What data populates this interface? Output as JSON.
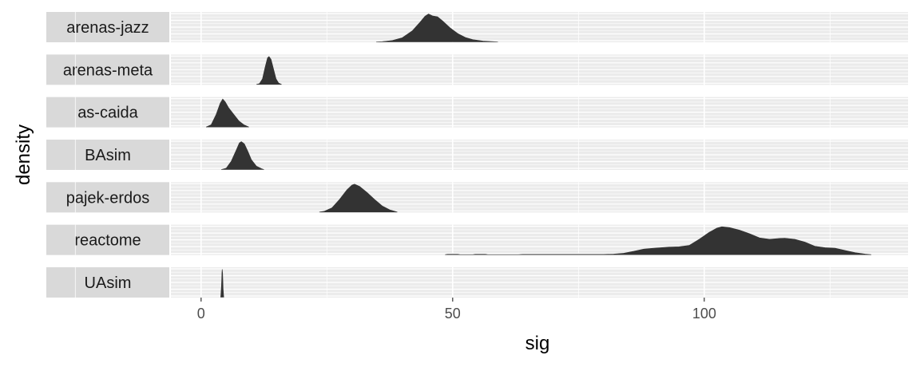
{
  "chart_data": {
    "type": "area",
    "chart_style": "faceted density plot, one panel per network, strip labels on the left",
    "xlabel": "sig",
    "ylabel": "density",
    "xlim": [
      -6,
      140.5
    ],
    "x_ticks": [
      0,
      50,
      100
    ],
    "grid": true,
    "legend": "none",
    "colors": {
      "panel_bg": "#ebebeb",
      "strip_bg": "#d9d9d9",
      "fill": "#333333",
      "grid": "#ffffff"
    },
    "facets": [
      {
        "label": "arenas-jazz",
        "points": [
          [
            34.8,
            0
          ],
          [
            36,
            0.01
          ],
          [
            38,
            0.05
          ],
          [
            40,
            0.15
          ],
          [
            42,
            0.4
          ],
          [
            43.5,
            0.7
          ],
          [
            44.5,
            0.92
          ],
          [
            45.2,
            1.0
          ],
          [
            46,
            0.93
          ],
          [
            47,
            0.9
          ],
          [
            48,
            0.75
          ],
          [
            49.5,
            0.5
          ],
          [
            51,
            0.3
          ],
          [
            52.5,
            0.16
          ],
          [
            54,
            0.08
          ],
          [
            56,
            0.03
          ],
          [
            59,
            0
          ]
        ]
      },
      {
        "label": "arenas-meta",
        "points": [
          [
            11,
            0
          ],
          [
            11.6,
            0.03
          ],
          [
            12.2,
            0.2
          ],
          [
            12.7,
            0.6
          ],
          [
            13.2,
            0.95
          ],
          [
            13.5,
            1.0
          ],
          [
            13.9,
            0.9
          ],
          [
            14.4,
            0.55
          ],
          [
            14.9,
            0.2
          ],
          [
            15.4,
            0.05
          ],
          [
            16,
            0
          ]
        ]
      },
      {
        "label": "as-caida",
        "points": [
          [
            1,
            0
          ],
          [
            2,
            0.08
          ],
          [
            3,
            0.45
          ],
          [
            3.8,
            0.85
          ],
          [
            4.3,
            1.0
          ],
          [
            4.8,
            0.9
          ],
          [
            5.5,
            0.68
          ],
          [
            6.5,
            0.45
          ],
          [
            7.5,
            0.22
          ],
          [
            8.5,
            0.08
          ],
          [
            9.5,
            0
          ]
        ]
      },
      {
        "label": "BAsim",
        "points": [
          [
            4,
            0
          ],
          [
            5,
            0.05
          ],
          [
            6,
            0.3
          ],
          [
            7,
            0.7
          ],
          [
            7.6,
            0.95
          ],
          [
            8,
            1.0
          ],
          [
            8.6,
            0.92
          ],
          [
            9.3,
            0.65
          ],
          [
            10,
            0.35
          ],
          [
            11,
            0.12
          ],
          [
            12,
            0.03
          ],
          [
            12.5,
            0
          ]
        ]
      },
      {
        "label": "pajek-erdos",
        "points": [
          [
            23.5,
            0
          ],
          [
            24.5,
            0.03
          ],
          [
            26,
            0.15
          ],
          [
            27.5,
            0.45
          ],
          [
            29,
            0.8
          ],
          [
            30,
            0.97
          ],
          [
            30.5,
            1.0
          ],
          [
            31.5,
            0.92
          ],
          [
            33,
            0.7
          ],
          [
            34.5,
            0.45
          ],
          [
            36,
            0.22
          ],
          [
            37.5,
            0.08
          ],
          [
            39,
            0
          ]
        ]
      },
      {
        "label": "reactome",
        "points": [
          [
            48.5,
            0
          ],
          [
            49,
            0.015
          ],
          [
            51,
            0.015
          ],
          [
            51.5,
            0
          ],
          [
            54,
            0
          ],
          [
            54.5,
            0.015
          ],
          [
            56.5,
            0.015
          ],
          [
            57,
            0
          ],
          [
            63,
            0
          ],
          [
            64,
            0.01
          ],
          [
            80,
            0.01
          ],
          [
            82,
            0.02
          ],
          [
            84,
            0.05
          ],
          [
            86,
            0.12
          ],
          [
            88,
            0.2
          ],
          [
            90,
            0.23
          ],
          [
            93,
            0.27
          ],
          [
            95,
            0.28
          ],
          [
            97,
            0.33
          ],
          [
            99,
            0.55
          ],
          [
            101,
            0.8
          ],
          [
            102.5,
            0.95
          ],
          [
            103.5,
            1.0
          ],
          [
            105,
            0.97
          ],
          [
            107,
            0.88
          ],
          [
            109,
            0.75
          ],
          [
            111,
            0.6
          ],
          [
            113,
            0.55
          ],
          [
            115,
            0.58
          ],
          [
            116,
            0.59
          ],
          [
            118,
            0.55
          ],
          [
            120,
            0.45
          ],
          [
            122,
            0.3
          ],
          [
            124,
            0.25
          ],
          [
            126,
            0.23
          ],
          [
            128,
            0.15
          ],
          [
            130,
            0.07
          ],
          [
            132,
            0.02
          ],
          [
            133.2,
            0
          ]
        ]
      },
      {
        "label": "UAsim",
        "points": [
          [
            3.9,
            0
          ],
          [
            4.05,
            0.4
          ],
          [
            4.15,
            0.9
          ],
          [
            4.2,
            1.0
          ],
          [
            4.28,
            0.85
          ],
          [
            4.38,
            0.3
          ],
          [
            4.5,
            0
          ]
        ]
      }
    ]
  }
}
